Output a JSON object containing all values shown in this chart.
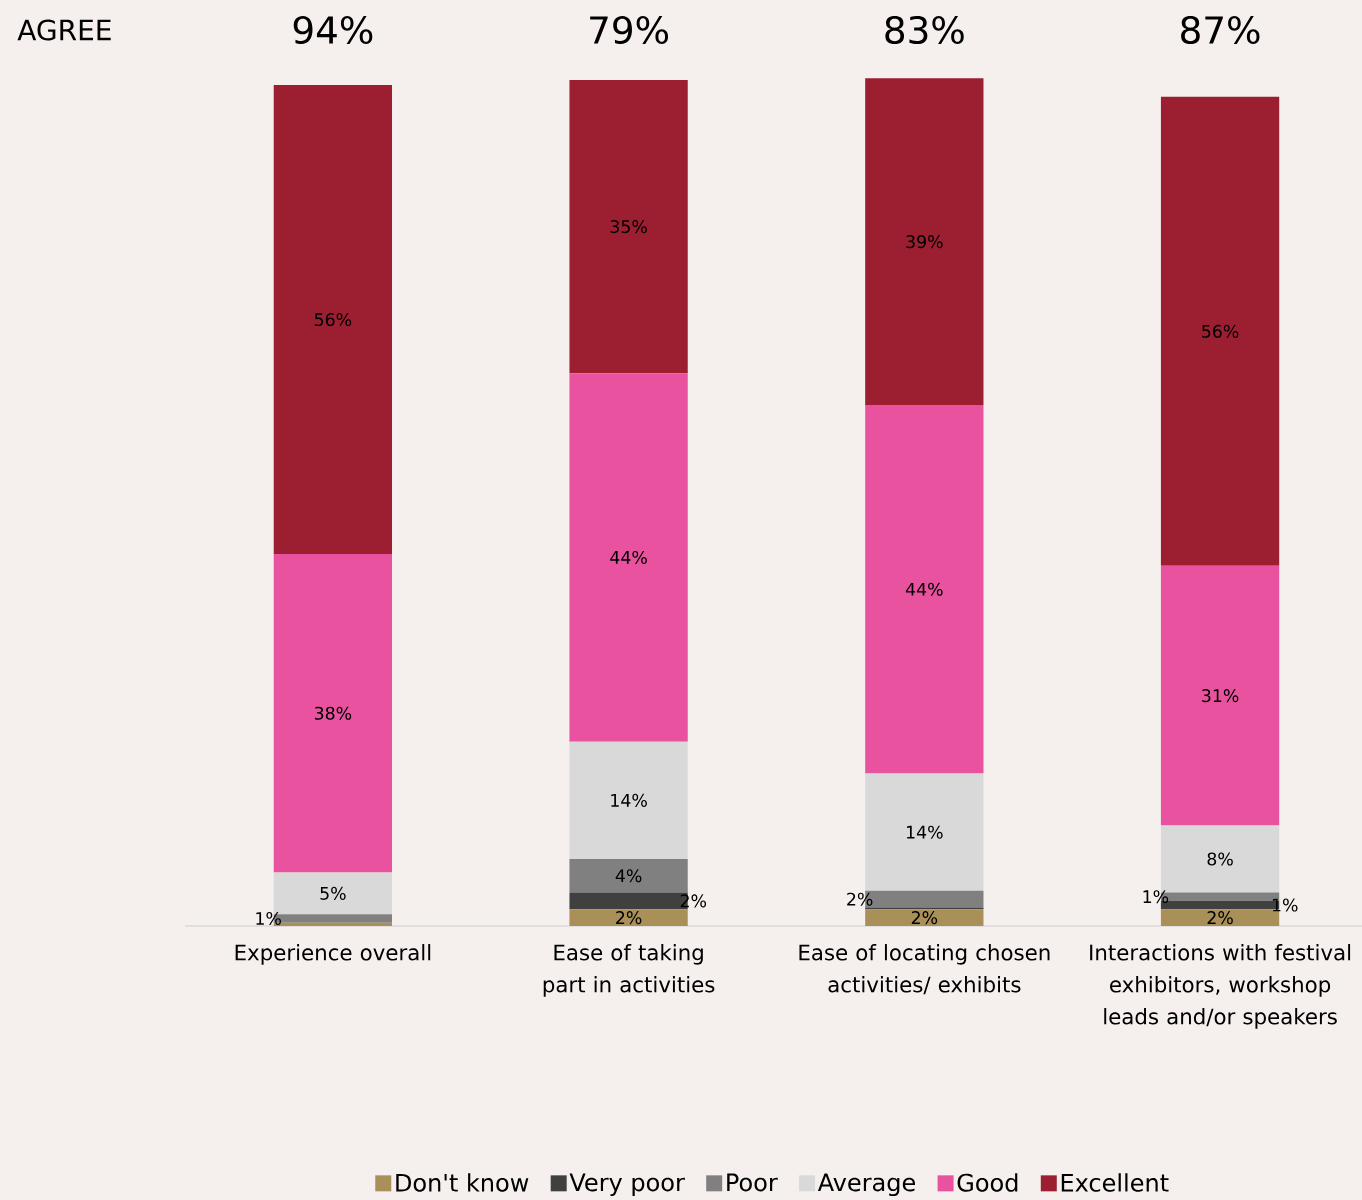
{
  "chart_data": {
    "type": "bar",
    "stacked": true,
    "categories": [
      "Experience overall",
      "Ease of taking part in activities",
      "Ease of locating chosen activities/ exhibits",
      "Interactions with festival exhibitors, workshop leads and/or speakers"
    ],
    "series": [
      {
        "name": "Don't know",
        "color": "#a89058",
        "values": [
          0.4,
          2,
          2,
          2
        ],
        "value_labels": [
          null,
          "2%",
          "2%",
          "2%"
        ]
      },
      {
        "name": "Very poor",
        "color": "#404040",
        "values": [
          0,
          2,
          0.2,
          1
        ],
        "value_labels": [
          null,
          "2%",
          null,
          "1%"
        ]
      },
      {
        "name": "Poor",
        "color": "#808080",
        "values": [
          1,
          4,
          2,
          1
        ],
        "value_labels": [
          "1%",
          "4%",
          "2%",
          "1%"
        ]
      },
      {
        "name": "Average",
        "color": "#d9d9d9",
        "values": [
          5,
          14,
          14,
          8
        ],
        "value_labels": [
          "5%",
          "14%",
          "14%",
          "8%"
        ]
      },
      {
        "name": "Good",
        "color": "#e9529e",
        "values": [
          38,
          44,
          44,
          31
        ],
        "value_labels": [
          "38%",
          "44%",
          "44%",
          "31%"
        ]
      },
      {
        "name": "Excellent",
        "color": "#9b1e31",
        "values": [
          56,
          35,
          39,
          56
        ],
        "value_labels": [
          "56%",
          "35%",
          "39%",
          "56%"
        ]
      }
    ],
    "ylim": [
      0,
      101
    ],
    "tick_labels": "x",
    "legend": "bottom",
    "annotations": [
      "AGREE",
      "94%",
      "79%",
      "83%",
      "87%"
    ]
  }
}
